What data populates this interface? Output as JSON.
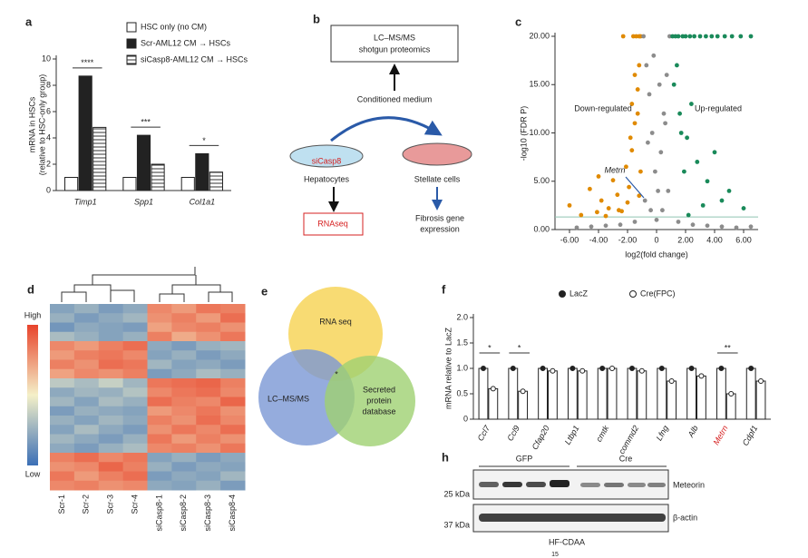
{
  "chart_data": [
    {
      "type": "bar",
      "panel": "a",
      "ylabel": [
        "mRNA in HSCs",
        "(relative to HSC-only group)"
      ],
      "categories": [
        "Timp1",
        "Spp1",
        "Col1a1"
      ],
      "series": [
        {
          "name": "HSC only (no CM)",
          "color": "#ffffff",
          "pattern": "none",
          "values": [
            1.0,
            1.0,
            1.0
          ]
        },
        {
          "name": "Scr-AML12 CM → HSCs",
          "color": "#222222",
          "pattern": "none",
          "values": [
            8.7,
            4.2,
            2.8
          ]
        },
        {
          "name": "siCasp8-AML12 CM → HSCs",
          "color": "#ffffff",
          "pattern": "hatch",
          "values": [
            4.8,
            2.0,
            1.4
          ]
        }
      ],
      "significance": [
        "****",
        "***",
        "*"
      ],
      "ylim": [
        0,
        10
      ],
      "yticks": [
        0,
        2,
        4,
        6,
        8,
        10
      ]
    },
    {
      "type": "scatter",
      "panel": "c",
      "ylabel": "-log10 (FDR P)",
      "xlabel": "log2(fold change)",
      "annotations": [
        "Down-regulated",
        "Up-regulated",
        "Metrn"
      ],
      "series": [
        {
          "color": "#e08a00",
          "x": [
            -6.0,
            -5.2,
            -4.6,
            -4.1,
            -3.8,
            -3.3,
            -3.0,
            -2.7,
            -2.4,
            -2.1,
            -1.9,
            -1.7,
            -1.5,
            -1.3,
            -1.2,
            -1.1,
            -2.3,
            -1.6,
            -1.4,
            -1.2,
            -3.5,
            -2.0,
            -1.8,
            -1.3,
            -1.1,
            -2.6,
            -1.5,
            -4.0,
            -1.2,
            -1.7
          ],
          "values": [
            2.5,
            1.5,
            4.2,
            1.8,
            3.0,
            2.2,
            5.1,
            3.6,
            1.9,
            6.5,
            4.4,
            8.2,
            11.0,
            14.5,
            17.0,
            20,
            20,
            20,
            20,
            20,
            1.4,
            2.8,
            9.5,
            12.0,
            6.0,
            2.0,
            16.0,
            5.5,
            3.5,
            13.0
          ]
        },
        {
          "color": "#8c8c8c",
          "x": [
            -0.9,
            -0.7,
            -0.5,
            -0.3,
            -0.1,
            0.1,
            0.3,
            0.5,
            0.7,
            0.9,
            -0.8,
            -0.4,
            0.0,
            0.4,
            0.8,
            -0.6,
            0.6,
            -0.2,
            0.2,
            -1.5,
            1.5,
            -2.5,
            2.5,
            -3.5,
            3.5,
            -4.5,
            4.5,
            -5.5,
            5.5,
            6.5
          ],
          "values": [
            20,
            17,
            14,
            10,
            6,
            4,
            8,
            12,
            16,
            20,
            3,
            2,
            1,
            2,
            4,
            9,
            11,
            18,
            15,
            0.8,
            0.8,
            0.5,
            0.5,
            0.4,
            0.4,
            0.3,
            0.3,
            0.2,
            0.2,
            0.3
          ]
        },
        {
          "color": "#1a8a5a",
          "x": [
            1.1,
            1.3,
            1.5,
            1.8,
            2.0,
            2.3,
            2.6,
            3.0,
            3.4,
            3.8,
            4.2,
            4.7,
            5.2,
            5.8,
            6.5,
            1.2,
            1.6,
            2.1,
            2.8,
            3.5,
            4.5,
            1.4,
            1.9,
            2.4,
            3.2,
            4.0,
            5.0,
            6.0,
            1.7,
            2.2
          ],
          "values": [
            20,
            20,
            20,
            20,
            20,
            20,
            20,
            20,
            20,
            20,
            20,
            20,
            20,
            20,
            20,
            15,
            12,
            9.5,
            7,
            5,
            3,
            17,
            6,
            13,
            2.5,
            8,
            4,
            2.2,
            10,
            1.5
          ]
        }
      ],
      "xlim": [
        -7,
        7
      ],
      "xticks": [
        {
          "value": -6,
          "label": "-6.00"
        },
        {
          "value": -4,
          "label": "-4.00"
        },
        {
          "value": -2,
          "label": "-2.00"
        },
        {
          "value": 0,
          "label": "0"
        },
        {
          "value": 2,
          "label": "2.00"
        },
        {
          "value": 4,
          "label": "4.00"
        },
        {
          "value": 6,
          "label": "6.00"
        }
      ],
      "ylim": [
        0,
        20
      ],
      "yticks": [
        {
          "value": 0,
          "label": "0.00"
        },
        {
          "value": 5,
          "label": "5.00"
        },
        {
          "value": 10,
          "label": "10.00"
        },
        {
          "value": 15,
          "label": "15.00"
        },
        {
          "value": 20,
          "label": "20.00"
        }
      ]
    },
    {
      "type": "heatmap",
      "panel": "d",
      "categories": [
        "Scr-1",
        "Scr-2",
        "Scr-3",
        "Scr-4",
        "siCasp8-1",
        "siCasp8-2",
        "siCasp8-3",
        "siCasp8-4"
      ],
      "legend_labels": [
        "High",
        "Low"
      ],
      "zlim": [
        -2,
        2
      ],
      "values": [
        [
          -1.2,
          -1.0,
          -1.3,
          -1.1,
          1.2,
          1.0,
          1.4,
          1.3
        ],
        [
          -1.0,
          -1.3,
          -1.1,
          -0.9,
          1.1,
          1.3,
          1.0,
          1.5
        ],
        [
          -1.4,
          -1.1,
          -1.2,
          -1.3,
          0.9,
          1.2,
          1.3,
          1.1
        ],
        [
          -0.8,
          -1.0,
          -1.2,
          -1.0,
          1.3,
          0.8,
          1.1,
          1.4
        ],
        [
          1.2,
          1.0,
          1.3,
          1.5,
          -1.1,
          -1.3,
          -1.0,
          -0.9
        ],
        [
          1.0,
          1.3,
          1.4,
          1.2,
          -1.2,
          -1.0,
          -1.3,
          -1.1
        ],
        [
          1.3,
          1.1,
          1.5,
          1.4,
          -0.9,
          -1.2,
          -1.1,
          -1.3
        ],
        [
          0.9,
          1.2,
          1.1,
          1.3,
          -1.3,
          -1.1,
          -0.8,
          -1.0
        ],
        [
          -0.6,
          -0.8,
          -0.5,
          -0.9,
          1.4,
          1.5,
          1.6,
          1.3
        ],
        [
          -1.1,
          -0.9,
          -1.0,
          -0.7,
          1.2,
          1.4,
          1.5,
          1.2
        ],
        [
          -0.9,
          -1.2,
          -0.8,
          -1.0,
          1.5,
          1.3,
          1.2,
          1.6
        ],
        [
          -1.3,
          -1.0,
          -1.1,
          -1.2,
          1.0,
          1.2,
          1.4,
          1.1
        ],
        [
          -1.0,
          -1.2,
          -0.9,
          -1.1,
          1.3,
          1.1,
          1.5,
          1.2
        ],
        [
          -1.2,
          -0.8,
          -1.1,
          -1.3,
          1.1,
          1.4,
          1.2,
          1.5
        ],
        [
          -0.9,
          -1.1,
          -1.3,
          -1.0,
          1.4,
          1.0,
          1.3,
          1.1
        ],
        [
          -1.1,
          -1.3,
          -1.0,
          -0.8,
          1.2,
          1.3,
          1.1,
          1.4
        ],
        [
          1.3,
          1.5,
          1.2,
          1.4,
          -1.2,
          -1.0,
          -1.3,
          -1.1
        ],
        [
          1.1,
          1.2,
          1.6,
          1.3,
          -1.0,
          -1.3,
          -1.1,
          -1.2
        ],
        [
          1.4,
          1.0,
          1.3,
          1.5,
          -1.3,
          -1.1,
          -1.2,
          -0.9
        ],
        [
          1.2,
          1.3,
          1.1,
          1.2,
          -1.1,
          -1.2,
          -1.0,
          -1.3
        ]
      ]
    },
    {
      "type": "bar",
      "panel": "f",
      "ylabel": "mRNA relative to LacZ",
      "categories": [
        "Ccl7",
        "Ccl9",
        "Cfap20",
        "Ltbp1",
        "cmtk",
        "commd2",
        "Lfng",
        "Alb",
        "Metrn",
        "Cdpf1"
      ],
      "category_colors": [
        "#222222",
        "#222222",
        "#222222",
        "#222222",
        "#222222",
        "#222222",
        "#222222",
        "#222222",
        "#d62020",
        "#222222"
      ],
      "series": [
        {
          "name": "LacZ",
          "color": "#ffffff",
          "marker": "filled",
          "values": [
            1.0,
            1.0,
            1.0,
            1.0,
            1.0,
            1.0,
            1.0,
            1.0,
            1.0,
            1.0
          ]
        },
        {
          "name": "Cre(FPC)",
          "color": "#ffffff",
          "marker": "open",
          "values": [
            0.6,
            0.55,
            0.95,
            0.95,
            1.0,
            0.95,
            0.75,
            0.85,
            0.5,
            0.75
          ]
        }
      ],
      "significance": [
        "*",
        "*",
        null,
        null,
        null,
        null,
        null,
        null,
        "**",
        null
      ],
      "ylim": [
        0,
        2.0
      ],
      "yticks": [
        0,
        0.5,
        {
          "value": 1.0,
          "label": "1.0"
        },
        1.5,
        {
          "value": 2.0,
          "label": "2.0"
        }
      ]
    }
  ],
  "diagram_b": {
    "panel": "b",
    "top_box": [
      "LC–MS/MS",
      "shotgun proteomics"
    ],
    "arrow_label": "Conditioned medium",
    "dish_label": "siCasp8",
    "left": "Hepatocytes",
    "right": "Stellate cells",
    "bottom_box": "RNAseq",
    "bottom_right": [
      "Fibrosis gene",
      "expression"
    ]
  },
  "venn_e": {
    "panel": "e",
    "sets": [
      "RNA seq",
      "LC–MS/MS",
      [
        "Secreted",
        "protein",
        "database"
      ]
    ],
    "center": "*"
  },
  "blot_h": {
    "panel": "h",
    "groups": [
      "GFP",
      "Cre"
    ],
    "markers": [
      "25 kDa",
      "37 kDa"
    ],
    "bands": [
      "Meteorin",
      "β-actin"
    ],
    "condition": "HF-CDAA",
    "footer": "15"
  }
}
